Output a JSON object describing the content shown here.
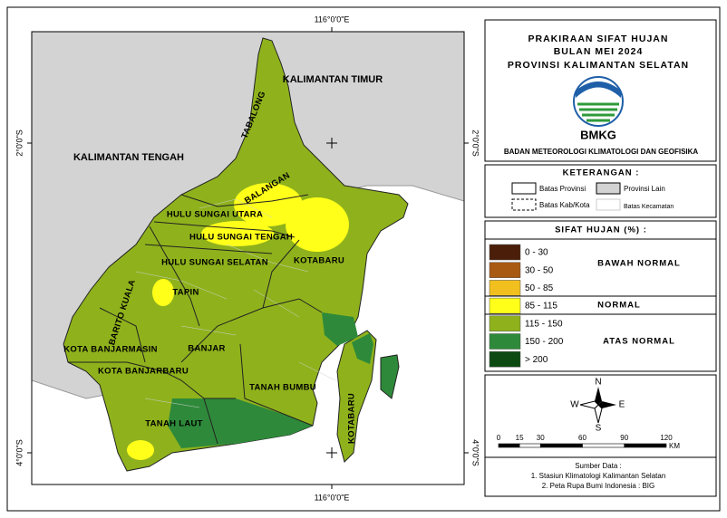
{
  "map": {
    "grid_labels": {
      "longitude": "116°0'0\"E",
      "latitude_north": "2°0'0\"S",
      "latitude_south": "4°0'0\"S"
    },
    "region_labels": [
      "KALIMANTAN TIMUR",
      "KALIMANTAN TENGAH"
    ],
    "district_labels": [
      "TABALONG",
      "BALANGAN",
      "HULU SUNGAI UTARA",
      "HULU SUNGAI TENGAH",
      "HULU SUNGAI SELATAN",
      "KOTABARU",
      "TAPIN",
      "BARITO KUALA",
      "KOTA BANJARMASIN",
      "BANJAR",
      "KOTA BANJARBARU",
      "TANAH BUMBU",
      "KOTABARU",
      "TANAH LAUT"
    ]
  },
  "title": {
    "lines": [
      "PRAKIRAAN SIFAT HUJAN",
      "BULAN MEI 2024",
      "PROVINSI KALIMANTAN SELATAN"
    ],
    "logo_text": "BMKG",
    "agency": "BADAN METEOROLOGI KLIMATOLOGI DAN GEOFISIKA"
  },
  "legend": {
    "title": "KETERANGAN :",
    "items": [
      "Batas Provinsi",
      "Provinsi Lain",
      "Batas Kab/Kota",
      "Batas Kecamatan"
    ]
  },
  "rain_legend": {
    "title": "SIFAT HUJAN (%) :",
    "classes": [
      {
        "range": "0 - 30",
        "color": "#4a1e08"
      },
      {
        "range": "30 - 50",
        "color": "#a85a12"
      },
      {
        "range": "50 - 85",
        "color": "#f2c01e"
      },
      {
        "range": "85 - 115",
        "color": "#ffff1a"
      },
      {
        "range": "115 - 150",
        "color": "#8fb21c"
      },
      {
        "range": "150 - 200",
        "color": "#2e8a3a"
      },
      {
        "range": "> 200",
        "color": "#0c4a12"
      }
    ],
    "groups": [
      "BAWAH NORMAL",
      "NORMAL",
      "ATAS NORMAL"
    ]
  },
  "compass": {
    "north": "N",
    "south": "S",
    "east": "E",
    "west": "W"
  },
  "scale": {
    "ticks": [
      0,
      15,
      30,
      60,
      90,
      120
    ],
    "unit": "KM"
  },
  "source": {
    "title": "Sumber Data :",
    "lines": [
      "1. Stasiun Klimatologi Kalimantan Selatan",
      "2. Peta Rupa Bumi Indonesia : BIG"
    ]
  }
}
